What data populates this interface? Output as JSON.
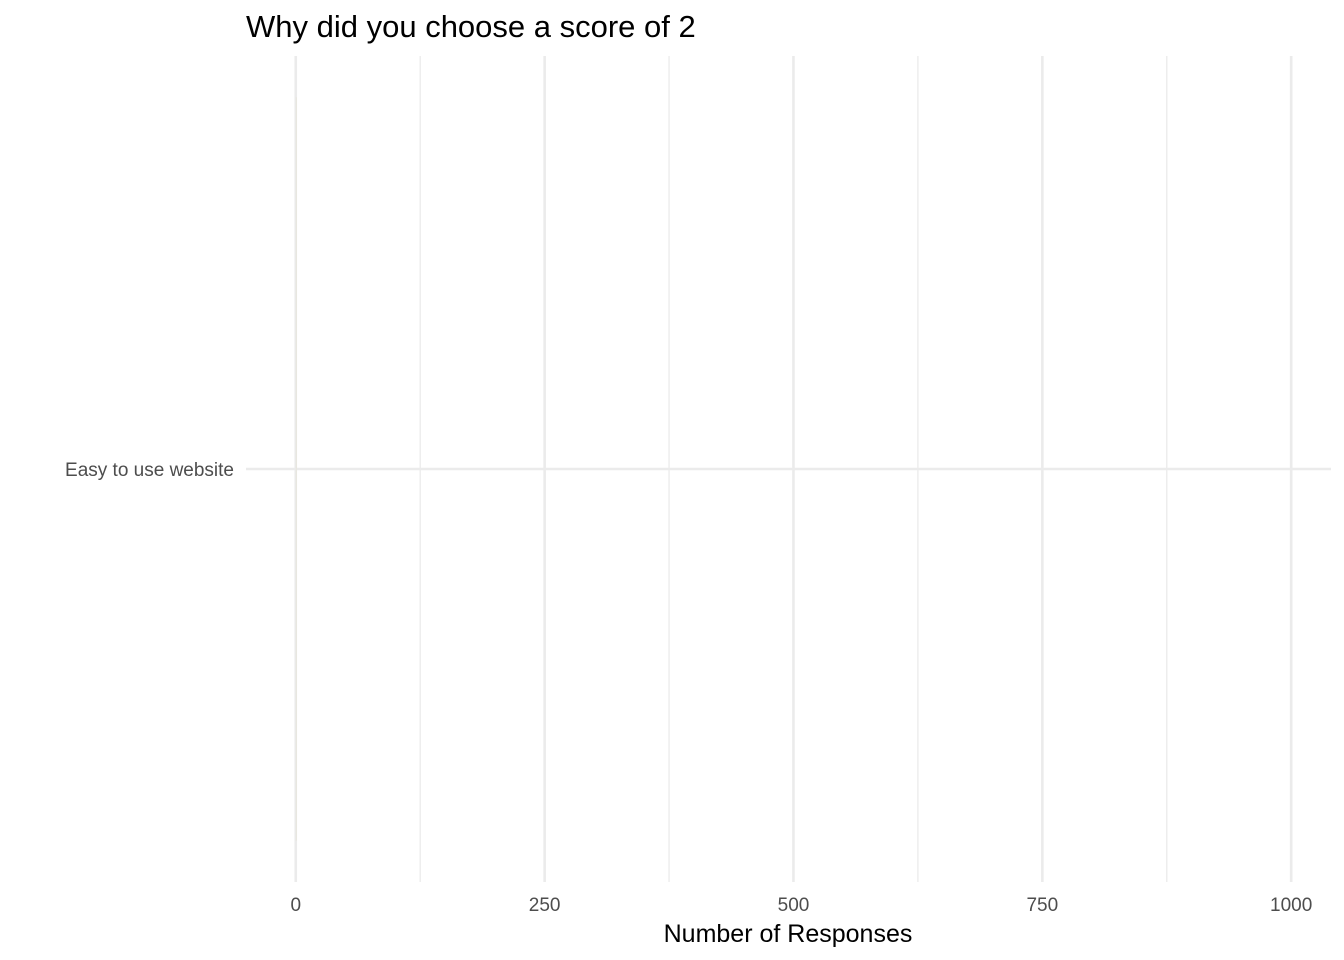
{
  "chart_data": {
    "type": "bar",
    "orientation": "horizontal",
    "title": "Why did you choose a score of 2",
    "xlabel": "Number of Responses",
    "ylabel": "",
    "categories": [
      "Easy to use website"
    ],
    "values": [
      1
    ],
    "xlim": [
      -50,
      1040
    ],
    "xticks": [
      0,
      250,
      500,
      750,
      1000
    ],
    "xtick_labels": [
      "0",
      "250",
      "500",
      "750",
      "1000"
    ],
    "grid": true,
    "legend": "none",
    "colors": {
      "bar": "#e8e6dc",
      "grid": "#ebebeb",
      "tick_text": "#4d4d4d",
      "text": "#000000"
    }
  }
}
